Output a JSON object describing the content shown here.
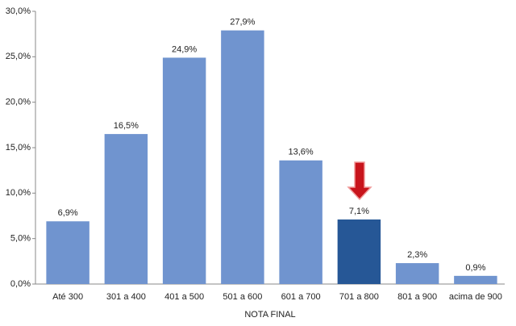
{
  "chart_data": {
    "type": "bar",
    "x_label": "NOTA FINAL",
    "categories": [
      "Até 300",
      "301 a 400",
      "401 a 500",
      "501 a 600",
      "601 a 700",
      "701 a 800",
      "801 a 900",
      "acima de 900"
    ],
    "values": [
      6.9,
      16.5,
      24.9,
      27.9,
      13.6,
      7.1,
      2.3,
      0.9
    ],
    "value_labels": [
      "6,9%",
      "16,5%",
      "24,9%",
      "27,9%",
      "13,6%",
      "7,1%",
      "2,3%",
      "0,9%"
    ],
    "colors": [
      "#7094cf",
      "#7094cf",
      "#7094cf",
      "#7094cf",
      "#7094cf",
      "#265796",
      "#7094cf",
      "#7094cf"
    ],
    "ylim": [
      0,
      30
    ],
    "yticks": [
      {
        "value": 0,
        "label": "0,0%"
      },
      {
        "value": 5,
        "label": "5,0%"
      },
      {
        "value": 10,
        "label": "10,0%"
      },
      {
        "value": 15,
        "label": "15,0%"
      },
      {
        "value": 20,
        "label": "20,0%"
      },
      {
        "value": 25,
        "label": "25,0%"
      },
      {
        "value": 30,
        "label": "30,0%"
      }
    ],
    "grid": false
  }
}
